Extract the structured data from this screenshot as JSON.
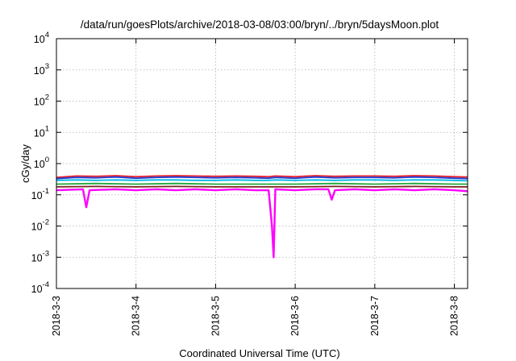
{
  "chart_data": {
    "type": "line",
    "title": "/data/run/goesPlots/archive/2018-03-08/03:00/bryn/../bryn/5daysMoon.plot",
    "xlabel": "Coordinated Universal Time (UTC)",
    "ylabel": "cGy/day",
    "yscale": "log",
    "ylim": [
      0.0001,
      10000
    ],
    "xlim": [
      "2018-03-03",
      "2018-03-08 04:00"
    ],
    "x_ticks": [
      "2018-3-3",
      "2018-3-4",
      "2018-3-5",
      "2018-3-6",
      "2018-3-7",
      "2018-3-8"
    ],
    "y_ticks": [
      {
        "base": "10",
        "exp": "-4"
      },
      {
        "base": "10",
        "exp": "-3"
      },
      {
        "base": "10",
        "exp": "-2"
      },
      {
        "base": "10",
        "exp": "-1"
      },
      {
        "base": "10",
        "exp": "0"
      },
      {
        "base": "10",
        "exp": "1"
      },
      {
        "base": "10",
        "exp": "2"
      },
      {
        "base": "10",
        "exp": "3"
      },
      {
        "base": "10",
        "exp": "4"
      }
    ],
    "grid": true,
    "legend": "none",
    "series": [
      {
        "color": "#e8232a",
        "values": [
          [
            "2018-03-03 00:00",
            0.36
          ],
          [
            "2018-03-03 06:00",
            0.4
          ],
          [
            "2018-03-03 12:00",
            0.39
          ],
          [
            "2018-03-03 18:00",
            0.41
          ],
          [
            "2018-03-04 00:00",
            0.38
          ],
          [
            "2018-03-04 06:00",
            0.4
          ],
          [
            "2018-03-04 12:00",
            0.41
          ],
          [
            "2018-03-04 18:00",
            0.4
          ],
          [
            "2018-03-05 00:00",
            0.39
          ],
          [
            "2018-03-05 06:00",
            0.4
          ],
          [
            "2018-03-05 12:00",
            0.39
          ],
          [
            "2018-03-05 16:00",
            0.38
          ],
          [
            "2018-03-05 18:00",
            0.4
          ],
          [
            "2018-03-06 00:00",
            0.38
          ],
          [
            "2018-03-06 06:00",
            0.41
          ],
          [
            "2018-03-06 12:00",
            0.39
          ],
          [
            "2018-03-06 18:00",
            0.4
          ],
          [
            "2018-03-07 00:00",
            0.4
          ],
          [
            "2018-03-07 06:00",
            0.39
          ],
          [
            "2018-03-07 12:00",
            0.41
          ],
          [
            "2018-03-07 18:00",
            0.4
          ],
          [
            "2018-03-08 00:00",
            0.38
          ],
          [
            "2018-03-08 04:00",
            0.37
          ]
        ]
      },
      {
        "color": "#1f3fd6",
        "values": [
          [
            "2018-03-03 00:00",
            0.33
          ],
          [
            "2018-03-03 06:00",
            0.36
          ],
          [
            "2018-03-03 12:00",
            0.35
          ],
          [
            "2018-03-03 18:00",
            0.37
          ],
          [
            "2018-03-04 00:00",
            0.34
          ],
          [
            "2018-03-04 06:00",
            0.36
          ],
          [
            "2018-03-04 12:00",
            0.37
          ],
          [
            "2018-03-04 18:00",
            0.36
          ],
          [
            "2018-03-05 00:00",
            0.35
          ],
          [
            "2018-03-05 06:00",
            0.36
          ],
          [
            "2018-03-05 12:00",
            0.35
          ],
          [
            "2018-03-05 16:00",
            0.34
          ],
          [
            "2018-03-05 18:00",
            0.36
          ],
          [
            "2018-03-06 00:00",
            0.34
          ],
          [
            "2018-03-06 06:00",
            0.37
          ],
          [
            "2018-03-06 12:00",
            0.35
          ],
          [
            "2018-03-06 18:00",
            0.36
          ],
          [
            "2018-03-07 00:00",
            0.36
          ],
          [
            "2018-03-07 06:00",
            0.35
          ],
          [
            "2018-03-07 12:00",
            0.37
          ],
          [
            "2018-03-07 18:00",
            0.36
          ],
          [
            "2018-03-08 00:00",
            0.34
          ],
          [
            "2018-03-08 04:00",
            0.33
          ]
        ]
      },
      {
        "color": "#00b8e6",
        "values": [
          [
            "2018-03-03 00:00",
            0.29
          ],
          [
            "2018-03-03 06:00",
            0.3
          ],
          [
            "2018-03-03 12:00",
            0.29
          ],
          [
            "2018-03-03 18:00",
            0.3
          ],
          [
            "2018-03-04 00:00",
            0.29
          ],
          [
            "2018-03-04 06:00",
            0.3
          ],
          [
            "2018-03-04 12:00",
            0.3
          ],
          [
            "2018-03-04 18:00",
            0.29
          ],
          [
            "2018-03-05 00:00",
            0.29
          ],
          [
            "2018-03-05 06:00",
            0.3
          ],
          [
            "2018-03-05 12:00",
            0.29
          ],
          [
            "2018-03-05 16:00",
            0.29
          ],
          [
            "2018-03-05 18:00",
            0.3
          ],
          [
            "2018-03-06 00:00",
            0.29
          ],
          [
            "2018-03-06 06:00",
            0.3
          ],
          [
            "2018-03-06 12:00",
            0.29
          ],
          [
            "2018-03-06 18:00",
            0.3
          ],
          [
            "2018-03-07 00:00",
            0.3
          ],
          [
            "2018-03-07 06:00",
            0.29
          ],
          [
            "2018-03-07 12:00",
            0.3
          ],
          [
            "2018-03-07 18:00",
            0.3
          ],
          [
            "2018-03-08 00:00",
            0.29
          ],
          [
            "2018-03-08 04:00",
            0.28
          ]
        ]
      },
      {
        "color": "#22a83c",
        "values": [
          [
            "2018-03-03 00:00",
            0.22
          ],
          [
            "2018-03-03 12:00",
            0.23
          ],
          [
            "2018-03-04 00:00",
            0.22
          ],
          [
            "2018-03-04 12:00",
            0.23
          ],
          [
            "2018-03-05 00:00",
            0.22
          ],
          [
            "2018-03-05 12:00",
            0.22
          ],
          [
            "2018-03-06 00:00",
            0.22
          ],
          [
            "2018-03-06 12:00",
            0.23
          ],
          [
            "2018-03-07 00:00",
            0.22
          ],
          [
            "2018-03-07 12:00",
            0.23
          ],
          [
            "2018-03-08 00:00",
            0.22
          ],
          [
            "2018-03-08 04:00",
            0.22
          ]
        ]
      },
      {
        "color": "#7a1f1f",
        "values": [
          [
            "2018-03-03 00:00",
            0.18
          ],
          [
            "2018-03-03 12:00",
            0.185
          ],
          [
            "2018-03-04 00:00",
            0.18
          ],
          [
            "2018-03-04 12:00",
            0.185
          ],
          [
            "2018-03-05 00:00",
            0.18
          ],
          [
            "2018-03-05 12:00",
            0.18
          ],
          [
            "2018-03-06 00:00",
            0.18
          ],
          [
            "2018-03-06 12:00",
            0.185
          ],
          [
            "2018-03-07 00:00",
            0.18
          ],
          [
            "2018-03-07 12:00",
            0.185
          ],
          [
            "2018-03-08 00:00",
            0.18
          ],
          [
            "2018-03-08 04:00",
            0.18
          ]
        ]
      },
      {
        "color": "#ff00ff",
        "values": [
          [
            "2018-03-03 00:00",
            0.14
          ],
          [
            "2018-03-03 08:00",
            0.15
          ],
          [
            "2018-03-03 09:00",
            0.04
          ],
          [
            "2018-03-03 10:00",
            0.14
          ],
          [
            "2018-03-03 18:00",
            0.15
          ],
          [
            "2018-03-04 00:00",
            0.14
          ],
          [
            "2018-03-04 06:00",
            0.15
          ],
          [
            "2018-03-04 12:00",
            0.14
          ],
          [
            "2018-03-04 18:00",
            0.15
          ],
          [
            "2018-03-05 00:00",
            0.14
          ],
          [
            "2018-03-05 06:00",
            0.15
          ],
          [
            "2018-03-05 12:00",
            0.14
          ],
          [
            "2018-03-05 16:00",
            0.14
          ],
          [
            "2018-03-05 17:00",
            0.01
          ],
          [
            "2018-03-05 17:30",
            0.001
          ],
          [
            "2018-03-05 18:00",
            0.15
          ],
          [
            "2018-03-06 00:00",
            0.14
          ],
          [
            "2018-03-06 06:00",
            0.15
          ],
          [
            "2018-03-06 10:00",
            0.15
          ],
          [
            "2018-03-06 11:00",
            0.07
          ],
          [
            "2018-03-06 12:00",
            0.14
          ],
          [
            "2018-03-06 18:00",
            0.15
          ],
          [
            "2018-03-07 00:00",
            0.14
          ],
          [
            "2018-03-07 06:00",
            0.15
          ],
          [
            "2018-03-07 12:00",
            0.14
          ],
          [
            "2018-03-07 18:00",
            0.15
          ],
          [
            "2018-03-08 00:00",
            0.14
          ],
          [
            "2018-03-08 04:00",
            0.13
          ]
        ]
      }
    ]
  }
}
